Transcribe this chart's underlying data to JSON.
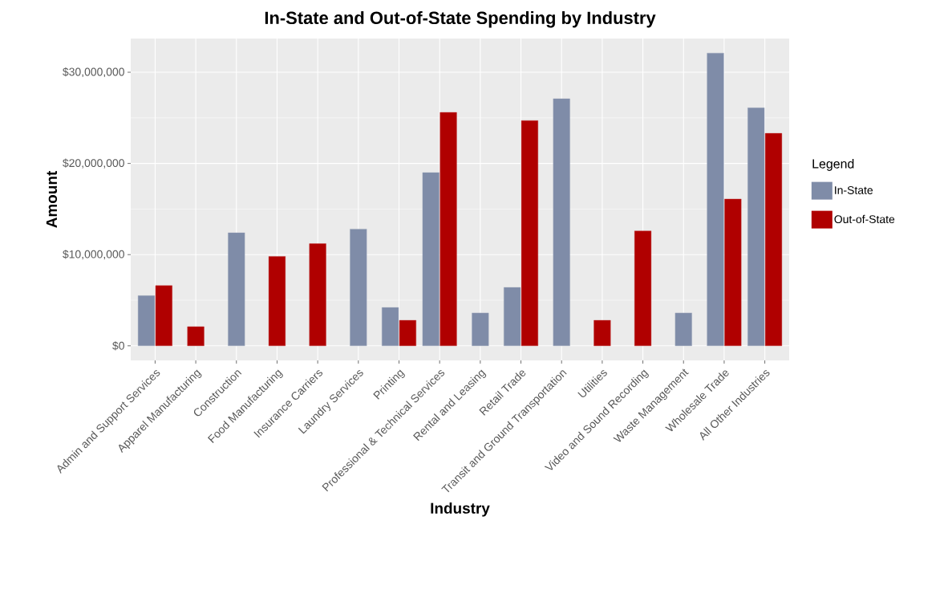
{
  "chart_data": {
    "type": "bar",
    "title": "In-State and Out-of-State Spending by Industry",
    "xlabel": "Industry",
    "ylabel": "Amount",
    "legend_title": "Legend",
    "categories": [
      "Admin and Support Services",
      "Apparel Manufacturing",
      "Construction",
      "Food Manufacturing",
      "Insurance Carriers",
      "Laundry Services",
      "Printing",
      "Professional & Technical Services",
      "Rental and Leasing",
      "Retail Trade",
      "Transit and Ground Transportation",
      "Utilities",
      "Video and Sound Recording",
      "Waste Management",
      "Wholesale Trade",
      "All Other Industries"
    ],
    "series": [
      {
        "name": "In-State",
        "color": "#7f8ca8",
        "values": [
          5500000,
          null,
          12400000,
          null,
          null,
          12800000,
          4200000,
          19000000,
          3600000,
          6400000,
          27100000,
          null,
          null,
          3600000,
          32100000,
          26100000
        ]
      },
      {
        "name": "Out-of-State",
        "color": "#b00000",
        "values": [
          6600000,
          2100000,
          null,
          9800000,
          11200000,
          null,
          2800000,
          25600000,
          null,
          24700000,
          null,
          2800000,
          12600000,
          null,
          16100000,
          23300000
        ]
      }
    ],
    "ylim": [
      -1600000,
      33700000
    ],
    "yticks": [
      {
        "value": 0,
        "label": "$0"
      },
      {
        "value": 10000000,
        "label": "$10,000,000"
      },
      {
        "value": 20000000,
        "label": "$20,000,000"
      },
      {
        "value": 30000000,
        "label": "$30,000,000"
      }
    ],
    "grid": true,
    "legend": "right"
  }
}
